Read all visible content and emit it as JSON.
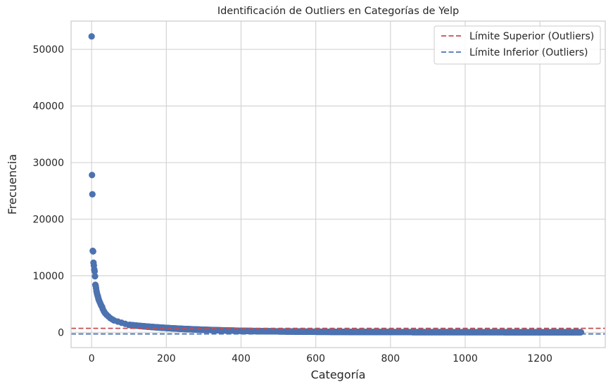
{
  "chart_data": {
    "type": "scatter",
    "title": "Identificación de Outliers en Categorías de Yelp",
    "xlabel": "Categoría",
    "ylabel": "Frecuencia",
    "xlim": [
      -55,
      1375
    ],
    "ylim": [
      -2700,
      55000
    ],
    "xticks": [
      0,
      200,
      400,
      600,
      800,
      1000,
      1200
    ],
    "yticks": [
      0,
      10000,
      20000,
      30000,
      40000,
      50000
    ],
    "grid": true,
    "legend_position": "top-right",
    "point_color": "#4c72b0",
    "n_categories": 1311,
    "leading_points": [
      [
        0,
        52300
      ],
      [
        1,
        27800
      ],
      [
        2,
        24400
      ],
      [
        3,
        14400
      ],
      [
        4,
        14300
      ],
      [
        5,
        12300
      ],
      [
        6,
        11800
      ],
      [
        7,
        11100
      ],
      [
        8,
        10800
      ],
      [
        9,
        9900
      ],
      [
        10,
        8400
      ],
      [
        11,
        8200
      ],
      [
        12,
        7800
      ],
      [
        13,
        7300
      ],
      [
        14,
        7000
      ],
      [
        15,
        6700
      ],
      [
        16,
        6500
      ],
      [
        17,
        6300
      ],
      [
        18,
        6000
      ],
      [
        19,
        5800
      ],
      [
        20,
        5600
      ],
      [
        22,
        5300
      ],
      [
        24,
        5000
      ],
      [
        26,
        4700
      ],
      [
        28,
        4500
      ],
      [
        30,
        4100
      ],
      [
        33,
        3700
      ],
      [
        36,
        3400
      ],
      [
        40,
        3100
      ],
      [
        45,
        2800
      ],
      [
        50,
        2500
      ],
      [
        55,
        2300
      ],
      [
        60,
        2100
      ],
      [
        70,
        1900
      ],
      [
        80,
        1700
      ],
      [
        90,
        1500
      ],
      [
        100,
        1300
      ]
    ],
    "tail_decay": {
      "a": 1300,
      "k": 0.0055,
      "floor": 20,
      "start": 101
    },
    "reference_lines": [
      {
        "name": "Límite Superior (Outliers)",
        "y": 700,
        "color": "#c44e52",
        "style": "dashed"
      },
      {
        "name": "Límite Inferior (Outliers)",
        "y": -280,
        "color": "#4c72b0",
        "style": "dashed"
      }
    ]
  }
}
